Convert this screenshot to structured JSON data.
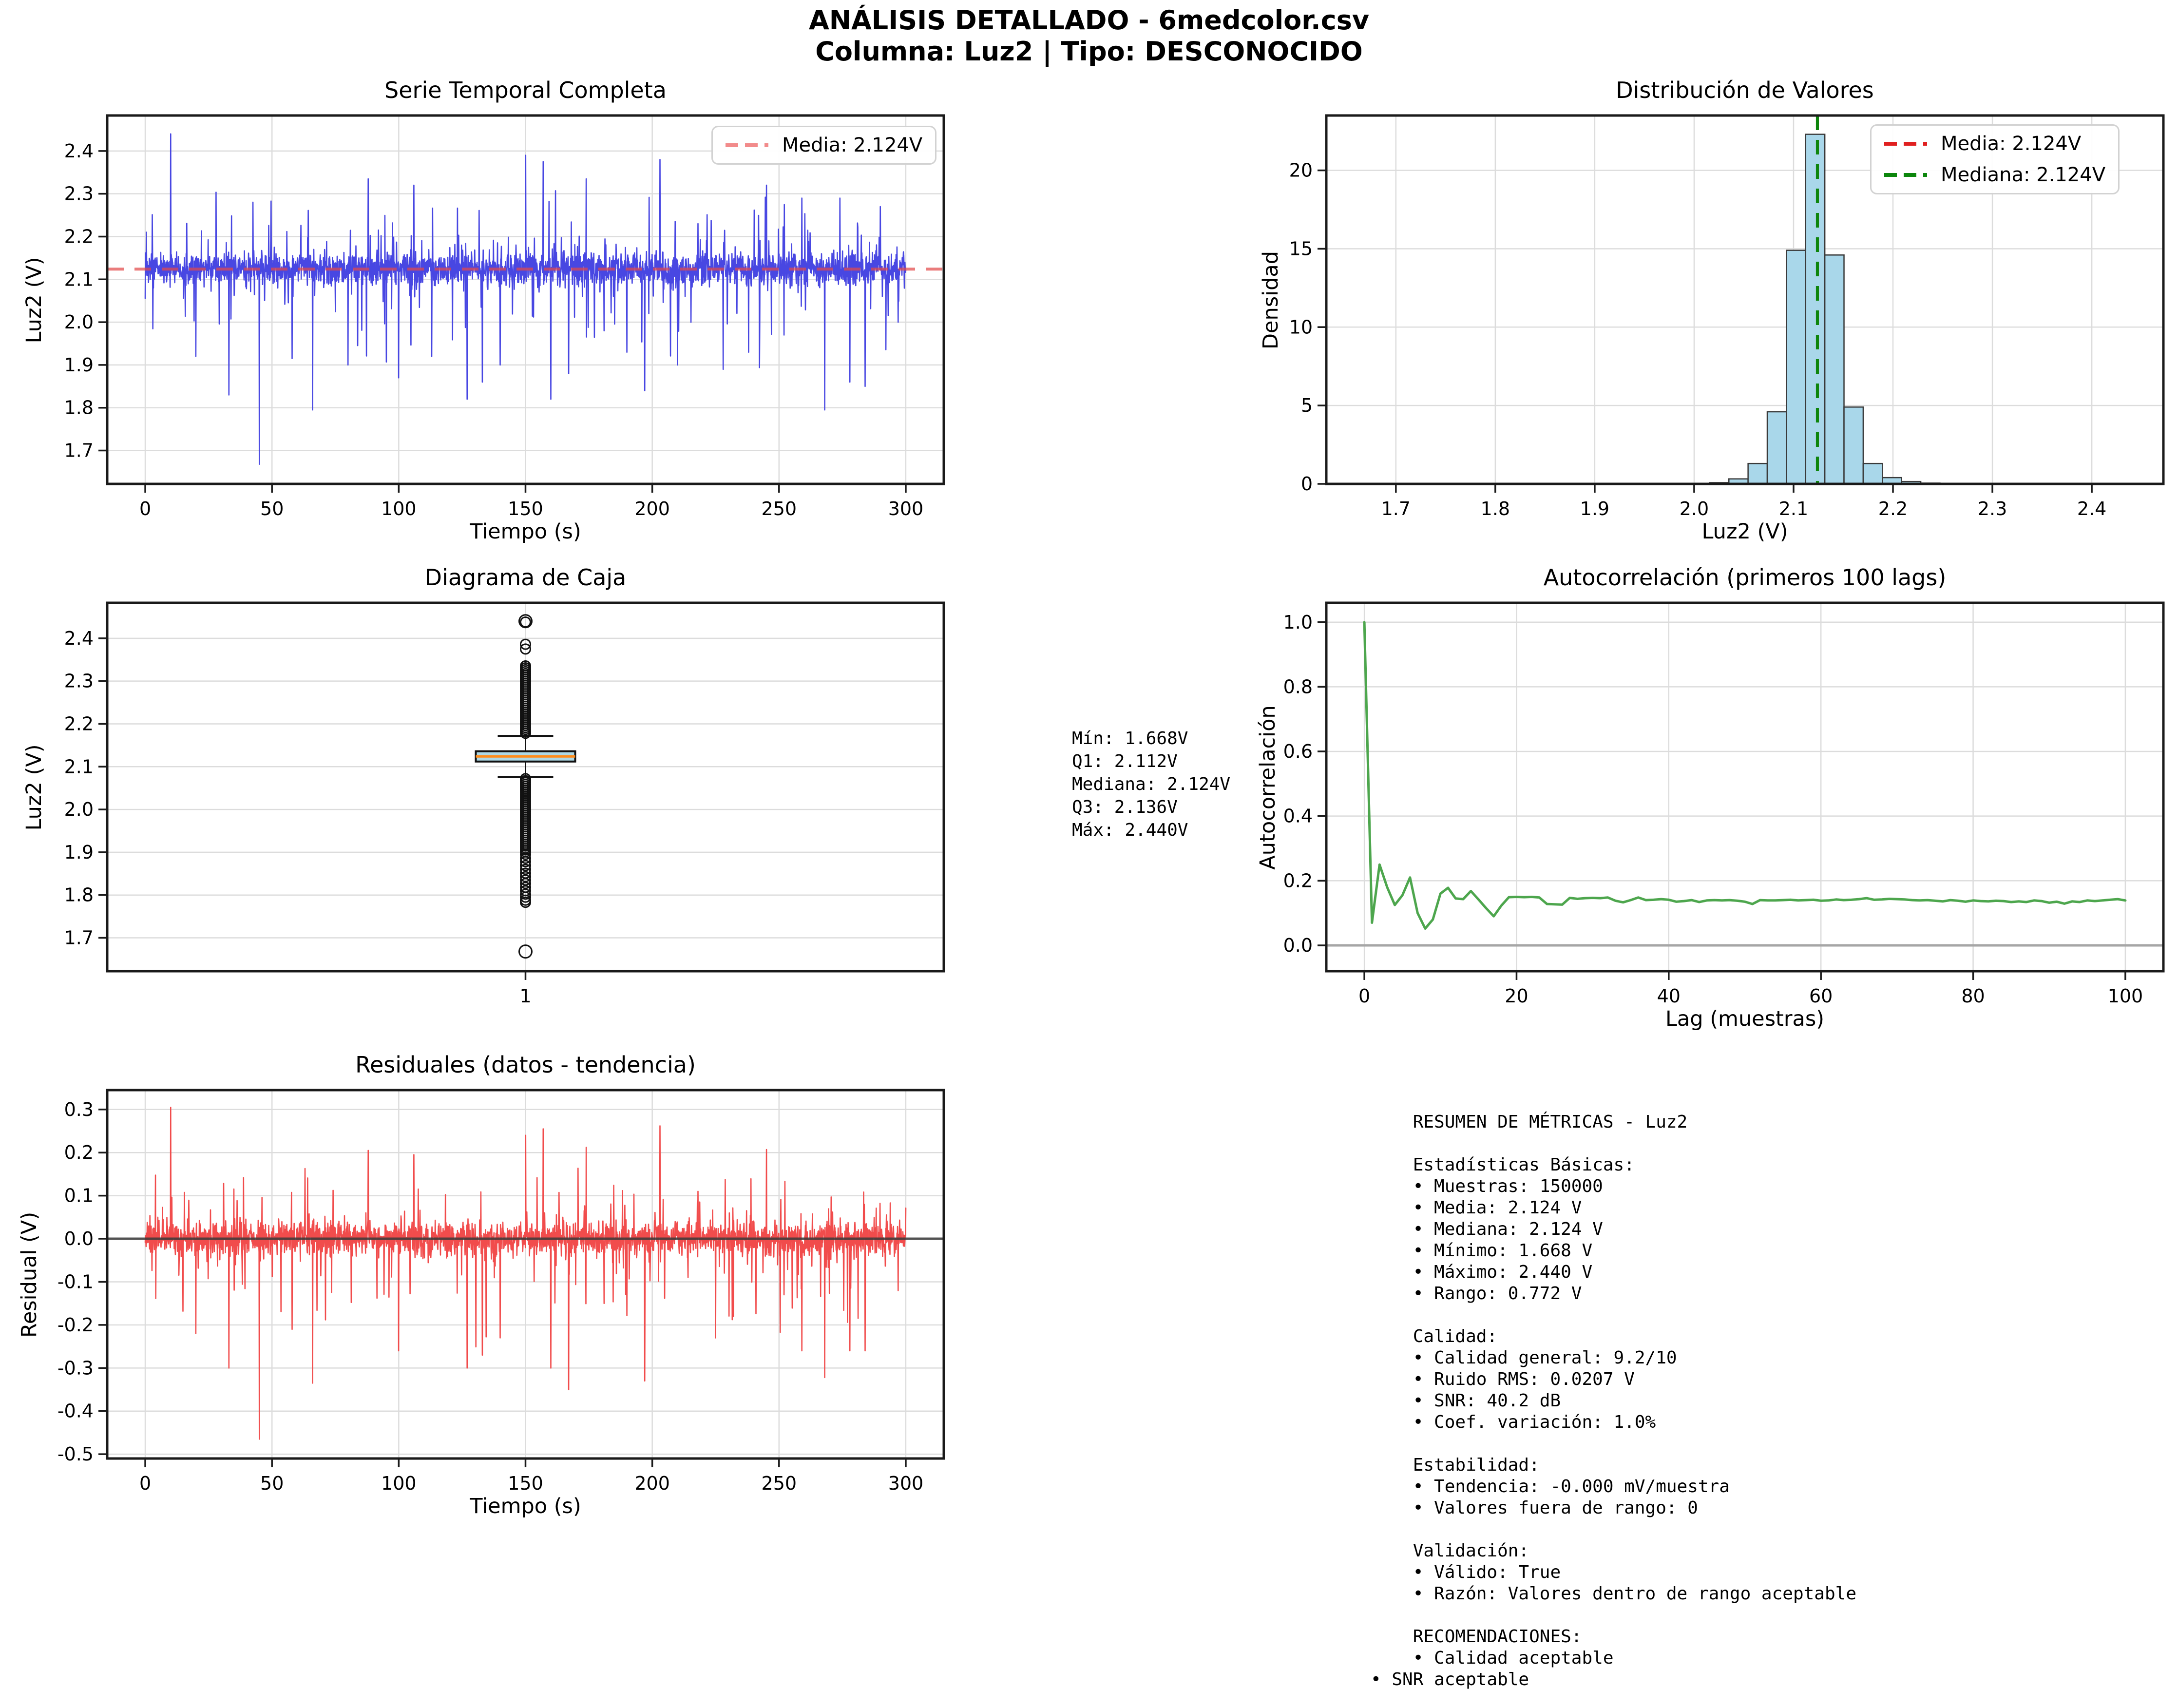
{
  "suptitle": {
    "line1": "ANÁLISIS DETALLADO - 6medcolor.csv",
    "line2": "Columna: Luz2 | Tipo: DESCONOCIDO"
  },
  "colors": {
    "timeseries_line": "#4847e2",
    "mean_dash_light": "#f28b8b",
    "mean_dash_red": "#e02020",
    "median_dash_green": "#0c860c",
    "hist_bar_fill": "#a9d7ea",
    "hist_bar_edge": "#3a3a3a",
    "autocorr_line": "#4da64d",
    "residual_line": "#f14c4c",
    "box_fill": "#add8e6",
    "box_median": "#ff8c1a",
    "grid": "#dcdcdc",
    "spine": "#1a1a1a",
    "zero_line_gray": "#a6a6a6",
    "zero_line_dark": "#3a3a3a"
  },
  "chart_data": [
    {
      "id": "timeseries",
      "type": "line",
      "title": "Serie Temporal Completa",
      "xlabel": "Tiempo (s)",
      "ylabel": "Luz2 (V)",
      "xlim": [
        -15,
        315
      ],
      "ylim": [
        1.622,
        2.483
      ],
      "xticks": {
        "v": [
          0,
          50,
          100,
          150,
          200,
          250,
          300
        ],
        "labels": [
          "0",
          "50",
          "100",
          "150",
          "200",
          "250",
          "300"
        ]
      },
      "yticks": {
        "v": [
          1.7,
          1.8,
          1.9,
          2.0,
          2.1,
          2.2,
          2.3,
          2.4
        ],
        "labels": [
          "1.7",
          "1.8",
          "1.9",
          "2.0",
          "2.1",
          "2.2",
          "2.3",
          "2.4"
        ]
      },
      "grid": true,
      "legend": [
        {
          "label": "Media: 2.124V",
          "style": "dashed-salmon"
        }
      ],
      "mean_line": 2.124,
      "stats": {
        "mean": 2.124,
        "min": 1.668,
        "max": 2.44,
        "duration_s": 300
      },
      "synthesis": {
        "seed": 42,
        "n": 2600,
        "t0": 0,
        "t1": 300,
        "mean": 2.124,
        "band": 0.062,
        "up_prob": 0.05,
        "up_amp": 0.16,
        "down_prob": 0.04,
        "down_amp": 0.22,
        "extremes": [
          [
            10,
            2.44
          ],
          [
            20,
            1.92
          ],
          [
            33,
            1.83
          ],
          [
            45,
            1.668
          ],
          [
            58,
            1.915
          ],
          [
            66,
            1.795
          ],
          [
            80,
            1.9
          ],
          [
            88,
            2.335
          ],
          [
            100,
            1.87
          ],
          [
            106,
            2.32
          ],
          [
            113,
            1.92
          ],
          [
            127,
            1.82
          ],
          [
            133,
            1.86
          ],
          [
            140,
            1.9
          ],
          [
            150,
            2.39
          ],
          [
            157,
            2.375
          ],
          [
            160,
            1.82
          ],
          [
            167,
            1.88
          ],
          [
            174,
            2.335
          ],
          [
            181,
            1.98
          ],
          [
            190,
            1.93
          ],
          [
            197,
            1.84
          ],
          [
            203,
            2.38
          ],
          [
            210,
            1.9
          ],
          [
            218,
            2.23
          ],
          [
            228,
            1.89
          ],
          [
            238,
            1.93
          ],
          [
            245,
            2.32
          ],
          [
            252,
            1.97
          ],
          [
            259,
            2.29
          ],
          [
            268,
            1.795
          ],
          [
            274,
            2.29
          ],
          [
            278,
            1.86
          ],
          [
            284,
            1.85
          ],
          [
            290,
            2.27
          ],
          [
            297,
            2.0
          ]
        ]
      }
    },
    {
      "id": "histogram",
      "type": "bar",
      "title": "Distribución de Valores",
      "xlabel": "Luz2 (V)",
      "ylabel": "Densidad",
      "xlim": [
        1.63,
        2.472
      ],
      "ylim": [
        0,
        23.5
      ],
      "xticks": {
        "v": [
          1.7,
          1.8,
          1.9,
          2.0,
          2.1,
          2.2,
          2.3,
          2.4
        ],
        "labels": [
          "1.7",
          "1.8",
          "1.9",
          "2.0",
          "2.1",
          "2.2",
          "2.3",
          "2.4"
        ]
      },
      "yticks": {
        "v": [
          0,
          5,
          10,
          15,
          20
        ],
        "labels": [
          "0",
          "5",
          "10",
          "15",
          "20"
        ]
      },
      "grid": true,
      "legend": [
        {
          "label": "Media: 2.124V",
          "style": "dashed-red"
        },
        {
          "label": "Mediana: 2.124V",
          "style": "dashed-green"
        }
      ],
      "bin_width": 0.0193,
      "bins": {
        "centers": [
          1.9867,
          2.006,
          2.0253,
          2.0446,
          2.0639,
          2.0832,
          2.1025,
          2.1218,
          2.1411,
          2.1604,
          2.1797,
          2.199,
          2.2183,
          2.2376,
          2.2569
        ],
        "densities": [
          0.01,
          0.02,
          0.08,
          0.32,
          1.3,
          4.6,
          14.9,
          22.3,
          14.6,
          4.9,
          1.3,
          0.4,
          0.15,
          0.05,
          0.02
        ]
      },
      "mean_vline": 2.124,
      "median_vline": 2.124
    },
    {
      "id": "boxplot",
      "type": "box",
      "title": "Diagrama de Caja",
      "xlabel": "",
      "ylabel": "Luz2 (V)",
      "xlim": [
        0,
        2
      ],
      "ylim": [
        1.622,
        2.483
      ],
      "xticks": {
        "v": [
          1
        ],
        "labels": [
          "1"
        ]
      },
      "yticks": {
        "v": [
          1.7,
          1.8,
          1.9,
          2.0,
          2.1,
          2.2,
          2.3,
          2.4
        ],
        "labels": [
          "1.7",
          "1.8",
          "1.9",
          "2.0",
          "2.1",
          "2.2",
          "2.3",
          "2.4"
        ]
      },
      "grid": true,
      "stats": {
        "min": 1.668,
        "q1": 2.112,
        "median": 2.124,
        "q3": 2.136,
        "max": 2.44,
        "whisker_low": 2.076,
        "whisker_high": 2.172
      },
      "outliers": {
        "upper_dense_range": [
          2.178,
          2.338
        ],
        "upper_isolated": [
          2.375,
          2.386,
          2.438
        ],
        "lower_dense_range": [
          1.9,
          2.072
        ],
        "lower_sparse": [
          1.895,
          1.886,
          1.878,
          1.869,
          1.86,
          1.851,
          1.843,
          1.835,
          1.827,
          1.818,
          1.81,
          1.802,
          1.795,
          1.788,
          1.783
        ],
        "extreme_high": 2.44,
        "extreme_low": 1.668
      }
    },
    {
      "id": "autocorr",
      "type": "line",
      "title": "Autocorrelación (primeros 100 lags)",
      "xlabel": "Lag (muestras)",
      "ylabel": "Autocorrelación",
      "xlim": [
        -5,
        105
      ],
      "ylim": [
        -0.08,
        1.06
      ],
      "xticks": {
        "v": [
          0,
          20,
          40,
          60,
          80,
          100
        ],
        "labels": [
          "0",
          "20",
          "40",
          "60",
          "80",
          "100"
        ]
      },
      "yticks": {
        "v": [
          0.0,
          0.2,
          0.4,
          0.6,
          0.8,
          1.0
        ],
        "labels": [
          "0.0",
          "0.2",
          "0.4",
          "0.6",
          "0.8",
          "1.0"
        ]
      },
      "grid": true,
      "zero_line": true,
      "values": [
        1.0,
        0.07,
        0.25,
        0.18,
        0.125,
        0.155,
        0.21,
        0.1,
        0.052,
        0.08,
        0.16,
        0.178,
        0.145,
        0.143,
        0.168,
        0.142,
        0.115,
        0.09,
        0.123,
        0.149,
        0.15,
        0.149,
        0.15,
        0.148,
        0.128,
        0.127,
        0.126,
        0.147,
        0.144,
        0.146,
        0.147,
        0.146,
        0.148,
        0.138,
        0.133,
        0.14,
        0.148,
        0.14,
        0.141,
        0.143,
        0.141,
        0.135,
        0.137,
        0.14,
        0.134,
        0.139,
        0.14,
        0.139,
        0.14,
        0.138,
        0.135,
        0.128,
        0.14,
        0.139,
        0.139,
        0.14,
        0.141,
        0.139,
        0.14,
        0.141,
        0.138,
        0.139,
        0.142,
        0.14,
        0.141,
        0.143,
        0.146,
        0.141,
        0.142,
        0.144,
        0.143,
        0.142,
        0.14,
        0.139,
        0.14,
        0.138,
        0.136,
        0.14,
        0.138,
        0.135,
        0.139,
        0.137,
        0.136,
        0.138,
        0.137,
        0.134,
        0.136,
        0.134,
        0.139,
        0.137,
        0.132,
        0.135,
        0.129,
        0.136,
        0.134,
        0.139,
        0.137,
        0.139,
        0.141,
        0.143,
        0.139
      ]
    },
    {
      "id": "residuals",
      "type": "line",
      "title": "Residuales (datos - tendencia)",
      "xlabel": "Tiempo (s)",
      "ylabel": "Residual (V)",
      "xlim": [
        -15,
        315
      ],
      "ylim": [
        -0.51,
        0.345
      ],
      "xticks": {
        "v": [
          0,
          50,
          100,
          150,
          200,
          250,
          300
        ],
        "labels": [
          "0",
          "50",
          "100",
          "150",
          "200",
          "250",
          "300"
        ]
      },
      "yticks": {
        "v": [
          -0.5,
          -0.4,
          -0.3,
          -0.2,
          -0.1,
          0.0,
          0.1,
          0.2,
          0.3
        ],
        "labels": [
          "-0.5",
          "-0.4",
          "-0.3",
          "-0.2",
          "-0.1",
          "0.0",
          "0.1",
          "0.2",
          "0.3"
        ]
      },
      "grid": true,
      "zero_line": true,
      "synthesis": {
        "seed": 1337,
        "n": 2600,
        "t0": 0,
        "t1": 300,
        "mean": 0,
        "band": 0.062,
        "up_prob": 0.05,
        "up_amp": 0.15,
        "down_prob": 0.04,
        "down_amp": 0.24,
        "extremes": [
          [
            10,
            0.305
          ],
          [
            20,
            -0.22
          ],
          [
            33,
            -0.3
          ],
          [
            45,
            -0.465
          ],
          [
            58,
            -0.21
          ],
          [
            66,
            -0.335
          ],
          [
            88,
            0.205
          ],
          [
            100,
            -0.26
          ],
          [
            106,
            0.195
          ],
          [
            127,
            -0.3
          ],
          [
            133,
            -0.27
          ],
          [
            140,
            -0.23
          ],
          [
            150,
            0.24
          ],
          [
            157,
            0.255
          ],
          [
            160,
            -0.3
          ],
          [
            167,
            -0.35
          ],
          [
            174,
            0.212
          ],
          [
            181,
            -0.15
          ],
          [
            197,
            -0.33
          ],
          [
            203,
            0.262
          ],
          [
            218,
            0.11
          ],
          [
            225,
            -0.23
          ],
          [
            232,
            -0.18
          ],
          [
            245,
            0.207
          ],
          [
            252,
            -0.13
          ],
          [
            259,
            -0.26
          ],
          [
            268,
            -0.322
          ],
          [
            278,
            -0.26
          ],
          [
            284,
            -0.26
          ],
          [
            297,
            -0.12
          ]
        ]
      }
    }
  ],
  "text_panels": {
    "box_stats_lines": [
      "Mín: 1.668V",
      "Q1: 2.112V",
      "Mediana: 2.124V",
      "Q3: 2.136V",
      "Máx: 2.440V"
    ],
    "metrics_lines": [
      "    RESUMEN DE MÉTRICAS - Luz2",
      "",
      "    Estadísticas Básicas:",
      "    • Muestras: 150000",
      "    • Media: 2.124 V",
      "    • Mediana: 2.124 V",
      "    • Mínimo: 1.668 V",
      "    • Máximo: 2.440 V",
      "    • Rango: 0.772 V",
      "",
      "    Calidad:",
      "    • Calidad general: 9.2/10",
      "    • Ruido RMS: 0.0207 V",
      "    • SNR: 40.2 dB",
      "    • Coef. variación: 1.0%",
      "",
      "    Estabilidad:",
      "    • Tendencia: -0.000 mV/muestra",
      "    • Valores fuera de rango: 0",
      "",
      "    Validación:",
      "    • Válido: True",
      "    • Razón: Valores dentro de rango aceptable",
      "",
      "    RECOMENDACIONES:",
      "    • Calidad aceptable",
      "• SNR aceptable"
    ]
  }
}
